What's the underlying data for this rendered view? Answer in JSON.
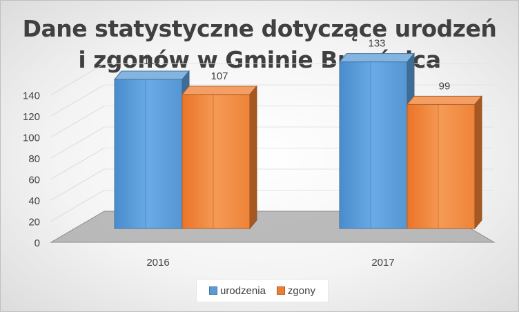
{
  "chart_data": {
    "type": "bar",
    "title_lines": [
      "Dane statystyczne dotyczące urodzeń",
      "i zgonów w Gminie Brzeźnica"
    ],
    "categories": [
      "2016",
      "2017"
    ],
    "series": [
      {
        "name": "urodzenia",
        "values": [
          119,
          133
        ],
        "color": "#5b9bd5"
      },
      {
        "name": "zgony",
        "values": [
          107,
          99
        ],
        "color": "#ed7d31"
      }
    ],
    "yticks": [
      "0",
      "20",
      "40",
      "60",
      "80",
      "100",
      "120",
      "140"
    ],
    "ylim": [
      0,
      140
    ],
    "legend_position": "bottom",
    "grid": true,
    "style": "3d-clustered-column"
  }
}
